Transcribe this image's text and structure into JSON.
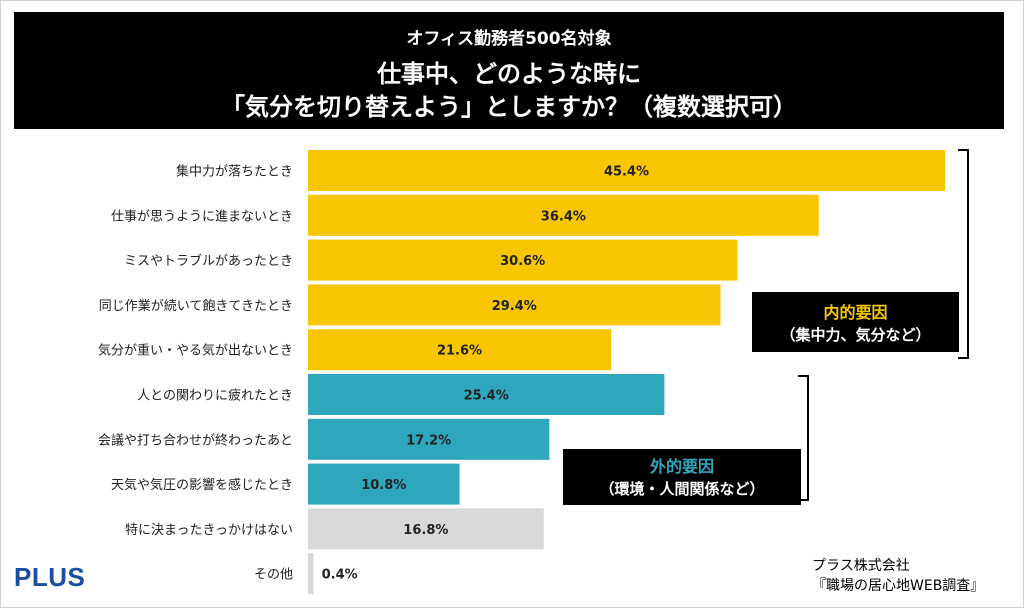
{
  "header": {
    "subtitle": "オフィス勤務者500名対象",
    "title_line1": "仕事中、どのような時に",
    "title_line2": "「気分を切り替えよう」としますか？（複数選択可）"
  },
  "chart_data": {
    "type": "bar",
    "orientation": "horizontal",
    "unit": "%",
    "categories": [
      "集中力が落ちたとき",
      "仕事が思うように進まないとき",
      "ミスやトラブルがあったとき",
      "同じ作業が続いて飽きてきたとき",
      "気分が重い・やる気が出ないとき",
      "人との関わりに疲れたとき",
      "会議や打ち合わせが終わったあと",
      "天気や気圧の影響を感じたとき",
      "特に決まったきっかけはない",
      "その他"
    ],
    "values": [
      45.4,
      36.4,
      30.6,
      29.4,
      21.6,
      25.4,
      17.2,
      10.8,
      16.8,
      0.4
    ],
    "value_labels": [
      "45.4%",
      "36.4%",
      "30.6%",
      "29.4%",
      "21.6%",
      "25.4%",
      "17.2%",
      "10.8%",
      "16.8%",
      "0.4%"
    ],
    "groups": [
      "internal",
      "internal",
      "internal",
      "internal",
      "internal",
      "external",
      "external",
      "external",
      "none",
      "none"
    ],
    "colors": {
      "internal": "#f7c600",
      "external": "#2ea7bd",
      "none": "#d9d9d9"
    },
    "xlim": [
      0,
      45.4
    ],
    "grid": false
  },
  "annotations": {
    "internal_title": "内的要因",
    "internal_sub": "（集中力、気分など）",
    "external_title": "外的要因",
    "external_sub": "（環境・人間関係など）"
  },
  "footer": {
    "logo": "PLUS",
    "credit_line1": "プラス株式会社",
    "credit_line2": "『職場の居心地WEB調査』"
  }
}
